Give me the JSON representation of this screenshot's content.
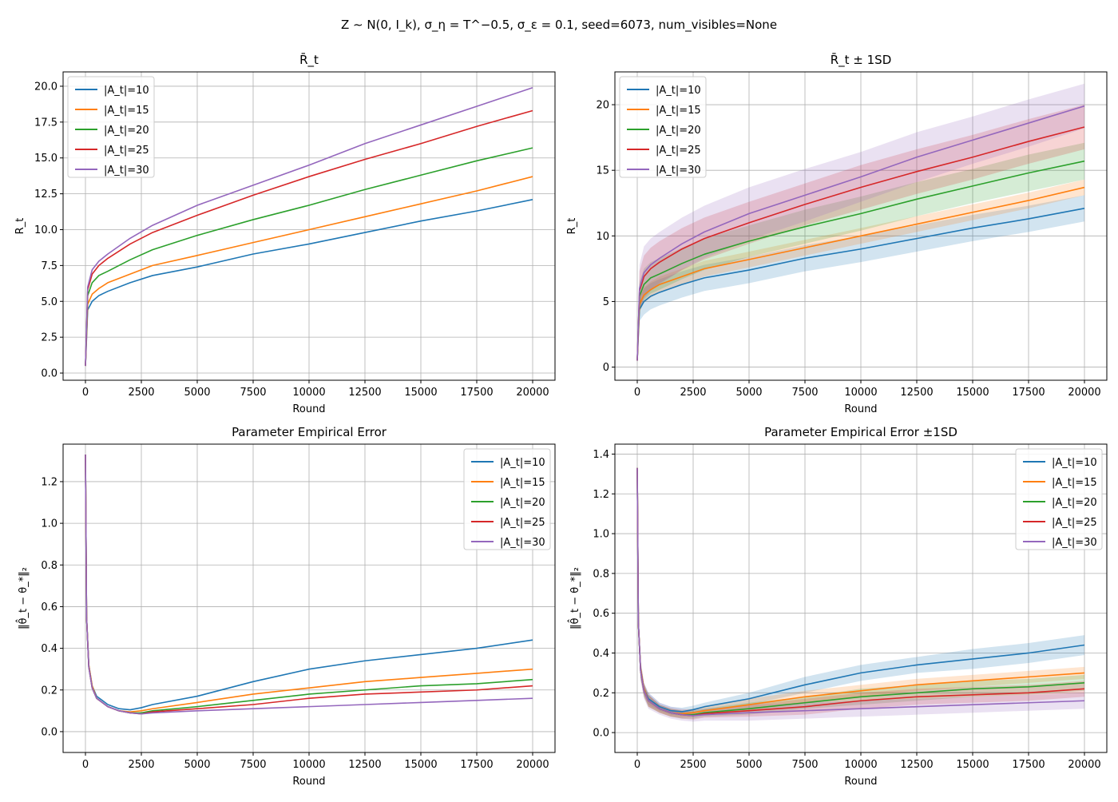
{
  "figure": {
    "suptitle": "Z ∼ N(0, I_k), σ_η = T^−0.5, σ_ε = 0.1, seed=6073, num_visibles=None"
  },
  "colors": {
    "series": [
      "#1f77b4",
      "#ff7f0e",
      "#2ca02c",
      "#d62728",
      "#9467bd"
    ],
    "grid": "#b0b0b0",
    "axis": "#000000"
  },
  "chart_data": [
    {
      "type": "line",
      "title": "R̄_t",
      "xlabel": "Round",
      "ylabel": "R_t",
      "xlim": [
        -1000,
        21000
      ],
      "ylim": [
        -0.5,
        21.0
      ],
      "xticks": [
        0,
        2500,
        5000,
        7500,
        10000,
        12500,
        15000,
        17500,
        20000
      ],
      "yticks": [
        0.0,
        2.5,
        5.0,
        7.5,
        10.0,
        12.5,
        15.0,
        17.5,
        20.0
      ],
      "ytick_labels": [
        "0.0",
        "2.5",
        "5.0",
        "7.5",
        "10.0",
        "12.5",
        "15.0",
        "17.5",
        "20.0"
      ],
      "grid": true,
      "legend": "upper left",
      "band": false,
      "x": [
        0,
        100,
        300,
        600,
        1000,
        2000,
        3000,
        5000,
        7500,
        10000,
        12500,
        15000,
        17500,
        20000
      ],
      "series": [
        {
          "name": "|A_t|=10",
          "values": [
            0.5,
            4.4,
            5.0,
            5.4,
            5.7,
            6.3,
            6.8,
            7.4,
            8.3,
            9.0,
            9.8,
            10.6,
            11.3,
            12.1
          ]
        },
        {
          "name": "|A_t|=15",
          "values": [
            0.5,
            4.8,
            5.5,
            5.9,
            6.3,
            6.9,
            7.5,
            8.2,
            9.1,
            10.0,
            10.9,
            11.8,
            12.7,
            13.7
          ]
        },
        {
          "name": "|A_t|=20",
          "values": [
            0.5,
            5.4,
            6.3,
            6.8,
            7.1,
            7.9,
            8.6,
            9.6,
            10.7,
            11.7,
            12.8,
            13.8,
            14.8,
            15.7
          ]
        },
        {
          "name": "|A_t|=25",
          "values": [
            0.5,
            5.8,
            6.9,
            7.5,
            8.0,
            9.0,
            9.8,
            11.0,
            12.4,
            13.7,
            14.9,
            16.0,
            17.2,
            18.3
          ]
        },
        {
          "name": "|A_t|=30",
          "values": [
            0.5,
            6.0,
            7.2,
            7.8,
            8.3,
            9.4,
            10.3,
            11.7,
            13.1,
            14.5,
            16.0,
            17.3,
            18.6,
            19.9
          ]
        }
      ]
    },
    {
      "type": "line",
      "title": "R̄_t ± 1SD",
      "xlabel": "Round",
      "ylabel": "R_t",
      "xlim": [
        -1000,
        21000
      ],
      "ylim": [
        -1.0,
        22.5
      ],
      "xticks": [
        0,
        2500,
        5000,
        7500,
        10000,
        12500,
        15000,
        17500,
        20000
      ],
      "yticks": [
        0,
        5,
        10,
        15,
        20
      ],
      "ytick_labels": [
        "0",
        "5",
        "10",
        "15",
        "20"
      ],
      "grid": true,
      "legend": "upper left",
      "band": true,
      "x": [
        0,
        100,
        300,
        600,
        1000,
        2000,
        3000,
        5000,
        7500,
        10000,
        12500,
        15000,
        17500,
        20000
      ],
      "series": [
        {
          "name": "|A_t|=10",
          "values": [
            0.5,
            4.4,
            5.0,
            5.4,
            5.7,
            6.3,
            6.8,
            7.4,
            8.3,
            9.0,
            9.8,
            10.6,
            11.3,
            12.1
          ],
          "sd": [
            0.1,
            0.9,
            1.0,
            1.0,
            1.0,
            1.0,
            1.0,
            1.0,
            1.0,
            1.0,
            1.0,
            1.0,
            1.0,
            1.0
          ]
        },
        {
          "name": "|A_t|=15",
          "values": [
            0.5,
            4.8,
            5.5,
            5.9,
            6.3,
            6.9,
            7.5,
            8.2,
            9.1,
            10.0,
            10.9,
            11.8,
            12.7,
            13.7
          ],
          "sd": [
            0.1,
            0.6,
            0.6,
            0.6,
            0.6,
            0.6,
            0.6,
            0.6,
            0.6,
            0.6,
            0.6,
            0.6,
            0.6,
            0.6
          ]
        },
        {
          "name": "|A_t|=20",
          "values": [
            0.5,
            5.4,
            6.3,
            6.8,
            7.1,
            7.9,
            8.6,
            9.6,
            10.7,
            11.7,
            12.8,
            13.8,
            14.8,
            15.7
          ],
          "sd": [
            0.1,
            1.1,
            1.2,
            1.2,
            1.2,
            1.2,
            1.2,
            1.2,
            1.3,
            1.3,
            1.3,
            1.3,
            1.4,
            1.4
          ]
        },
        {
          "name": "|A_t|=25",
          "values": [
            0.5,
            5.8,
            6.9,
            7.5,
            8.0,
            9.0,
            9.8,
            11.0,
            12.4,
            13.7,
            14.9,
            16.0,
            17.2,
            18.3
          ],
          "sd": [
            0.1,
            1.5,
            1.6,
            1.6,
            1.6,
            1.6,
            1.6,
            1.6,
            1.6,
            1.7,
            1.7,
            1.7,
            1.7,
            1.7
          ]
        },
        {
          "name": "|A_t|=30",
          "values": [
            0.5,
            6.0,
            7.2,
            7.8,
            8.3,
            9.4,
            10.3,
            11.7,
            13.1,
            14.5,
            16.0,
            17.3,
            18.6,
            19.9
          ],
          "sd": [
            0.1,
            1.8,
            2.0,
            2.0,
            2.0,
            2.0,
            2.0,
            2.0,
            2.0,
            1.9,
            1.9,
            1.8,
            1.8,
            1.7
          ]
        }
      ]
    },
    {
      "type": "line",
      "title": "Parameter Empirical Error",
      "xlabel": "Round",
      "ylabel": "‖θ̂_t − θ_*‖₂",
      "xlim": [
        -1000,
        21000
      ],
      "ylim": [
        -0.1,
        1.38
      ],
      "xticks": [
        0,
        2500,
        5000,
        7500,
        10000,
        12500,
        15000,
        17500,
        20000
      ],
      "yticks": [
        0.0,
        0.2,
        0.4,
        0.6,
        0.8,
        1.0,
        1.2
      ],
      "ytick_labels": [
        "0.0",
        "0.2",
        "0.4",
        "0.6",
        "0.8",
        "1.0",
        "1.2"
      ],
      "grid": true,
      "legend": "upper right",
      "band": false,
      "x": [
        0,
        50,
        150,
        300,
        500,
        1000,
        1500,
        2000,
        2500,
        3000,
        5000,
        7500,
        10000,
        12500,
        15000,
        17500,
        20000
      ],
      "series": [
        {
          "name": "|A_t|=10",
          "values": [
            1.33,
            0.55,
            0.32,
            0.22,
            0.17,
            0.13,
            0.11,
            0.105,
            0.115,
            0.13,
            0.17,
            0.24,
            0.3,
            0.34,
            0.37,
            0.4,
            0.44
          ]
        },
        {
          "name": "|A_t|=15",
          "values": [
            1.33,
            0.55,
            0.32,
            0.22,
            0.16,
            0.12,
            0.1,
            0.095,
            0.1,
            0.11,
            0.14,
            0.18,
            0.21,
            0.24,
            0.26,
            0.28,
            0.3
          ]
        },
        {
          "name": "|A_t|=20",
          "values": [
            1.33,
            0.55,
            0.31,
            0.21,
            0.16,
            0.12,
            0.1,
            0.09,
            0.09,
            0.1,
            0.12,
            0.15,
            0.18,
            0.2,
            0.22,
            0.23,
            0.25
          ]
        },
        {
          "name": "|A_t|=25",
          "values": [
            1.33,
            0.55,
            0.31,
            0.21,
            0.16,
            0.12,
            0.1,
            0.09,
            0.085,
            0.095,
            0.11,
            0.13,
            0.16,
            0.18,
            0.19,
            0.2,
            0.22
          ]
        },
        {
          "name": "|A_t|=30",
          "values": [
            1.33,
            0.55,
            0.31,
            0.21,
            0.16,
            0.12,
            0.1,
            0.09,
            0.085,
            0.09,
            0.1,
            0.11,
            0.12,
            0.13,
            0.14,
            0.15,
            0.16
          ]
        }
      ]
    },
    {
      "type": "line",
      "title": "Parameter Empirical Error ±1SD",
      "xlabel": "Round",
      "ylabel": "‖θ̂_t − θ_*‖₂",
      "xlim": [
        -1000,
        21000
      ],
      "ylim": [
        -0.1,
        1.45
      ],
      "xticks": [
        0,
        2500,
        5000,
        7500,
        10000,
        12500,
        15000,
        17500,
        20000
      ],
      "yticks": [
        0.0,
        0.2,
        0.4,
        0.6,
        0.8,
        1.0,
        1.2,
        1.4
      ],
      "ytick_labels": [
        "0.0",
        "0.2",
        "0.4",
        "0.6",
        "0.8",
        "1.0",
        "1.2",
        "1.4"
      ],
      "grid": true,
      "legend": "upper right",
      "band": true,
      "x": [
        0,
        50,
        150,
        300,
        500,
        1000,
        1500,
        2000,
        2500,
        3000,
        5000,
        7500,
        10000,
        12500,
        15000,
        17500,
        20000
      ],
      "series": [
        {
          "name": "|A_t|=10",
          "values": [
            1.33,
            0.55,
            0.32,
            0.22,
            0.17,
            0.13,
            0.11,
            0.105,
            0.115,
            0.13,
            0.17,
            0.24,
            0.3,
            0.34,
            0.37,
            0.4,
            0.44
          ],
          "sd": [
            0.0,
            0.05,
            0.04,
            0.03,
            0.03,
            0.02,
            0.02,
            0.02,
            0.02,
            0.02,
            0.03,
            0.04,
            0.04,
            0.04,
            0.05,
            0.05,
            0.05
          ]
        },
        {
          "name": "|A_t|=15",
          "values": [
            1.33,
            0.55,
            0.32,
            0.22,
            0.16,
            0.12,
            0.1,
            0.095,
            0.1,
            0.11,
            0.14,
            0.18,
            0.21,
            0.24,
            0.26,
            0.28,
            0.3
          ],
          "sd": [
            0.0,
            0.05,
            0.04,
            0.03,
            0.03,
            0.02,
            0.02,
            0.02,
            0.02,
            0.02,
            0.03,
            0.03,
            0.03,
            0.03,
            0.03,
            0.03,
            0.03
          ]
        },
        {
          "name": "|A_t|=20",
          "values": [
            1.33,
            0.55,
            0.31,
            0.21,
            0.16,
            0.12,
            0.1,
            0.09,
            0.09,
            0.1,
            0.12,
            0.15,
            0.18,
            0.2,
            0.22,
            0.23,
            0.25
          ],
          "sd": [
            0.0,
            0.05,
            0.04,
            0.03,
            0.03,
            0.02,
            0.02,
            0.02,
            0.02,
            0.02,
            0.03,
            0.03,
            0.04,
            0.04,
            0.04,
            0.04,
            0.04
          ]
        },
        {
          "name": "|A_t|=25",
          "values": [
            1.33,
            0.55,
            0.31,
            0.21,
            0.16,
            0.12,
            0.1,
            0.09,
            0.085,
            0.095,
            0.11,
            0.13,
            0.16,
            0.18,
            0.19,
            0.2,
            0.22
          ],
          "sd": [
            0.0,
            0.05,
            0.04,
            0.03,
            0.03,
            0.02,
            0.02,
            0.02,
            0.02,
            0.02,
            0.03,
            0.04,
            0.04,
            0.04,
            0.04,
            0.04,
            0.04
          ]
        },
        {
          "name": "|A_t|=30",
          "values": [
            1.33,
            0.55,
            0.31,
            0.21,
            0.16,
            0.12,
            0.1,
            0.09,
            0.085,
            0.09,
            0.1,
            0.11,
            0.12,
            0.13,
            0.14,
            0.15,
            0.16
          ],
          "sd": [
            0.0,
            0.05,
            0.05,
            0.04,
            0.04,
            0.03,
            0.03,
            0.03,
            0.03,
            0.03,
            0.04,
            0.04,
            0.04,
            0.04,
            0.04,
            0.04,
            0.04
          ]
        }
      ]
    }
  ]
}
